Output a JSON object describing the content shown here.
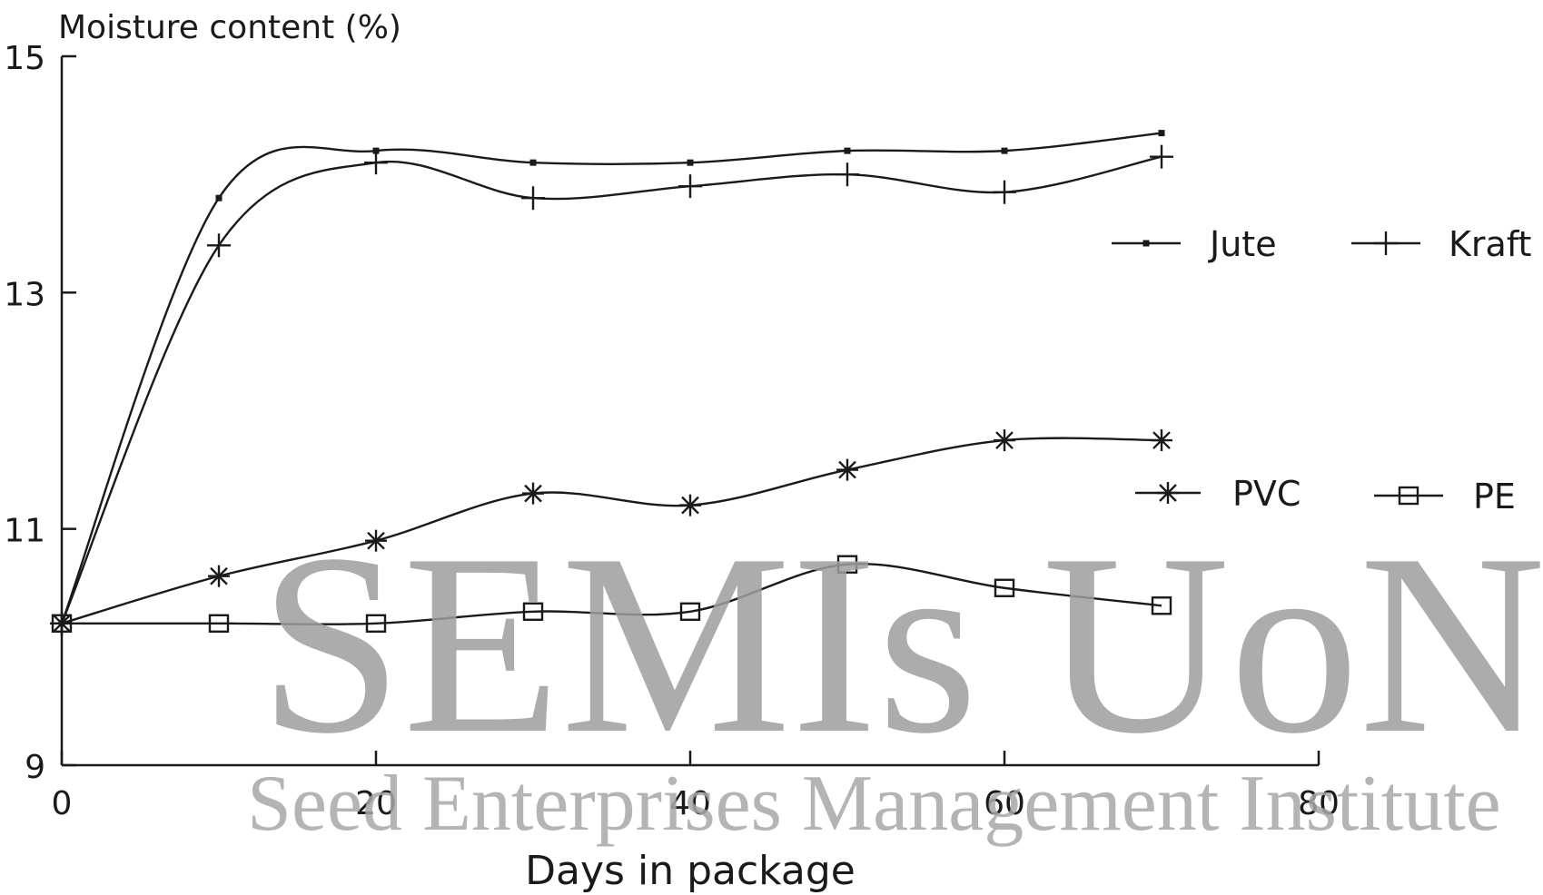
{
  "chart_data": {
    "type": "line",
    "ylabel": "Moisture content (%)",
    "xlabel": "Days in package",
    "xlim": [
      0,
      80
    ],
    "ylim": [
      9,
      15
    ],
    "xticks": [
      0,
      20,
      40,
      60,
      80
    ],
    "yticks": [
      9,
      11,
      13,
      15
    ],
    "grid": false,
    "legend_position": "right",
    "series": [
      {
        "name": "Jute",
        "marker": "dot",
        "x": [
          0,
          10,
          20,
          30,
          40,
          50,
          60,
          70
        ],
        "y": [
          10.2,
          13.8,
          14.2,
          14.1,
          14.1,
          14.2,
          14.2,
          14.35
        ]
      },
      {
        "name": "Kraft",
        "marker": "plus",
        "x": [
          0,
          10,
          20,
          30,
          40,
          50,
          60,
          70
        ],
        "y": [
          10.2,
          13.4,
          14.1,
          13.8,
          13.9,
          14.0,
          13.85,
          14.15
        ]
      },
      {
        "name": "PVC",
        "marker": "asterisk",
        "x": [
          0,
          10,
          20,
          30,
          40,
          50,
          60,
          70
        ],
        "y": [
          10.2,
          10.6,
          10.9,
          11.3,
          11.2,
          11.5,
          11.75,
          11.75
        ]
      },
      {
        "name": "PE",
        "marker": "square",
        "x": [
          0,
          10,
          20,
          30,
          40,
          50,
          60,
          70
        ],
        "y": [
          10.2,
          10.2,
          10.2,
          10.3,
          10.3,
          10.7,
          10.5,
          10.35
        ]
      }
    ],
    "line_color": "#1a1a1a"
  },
  "watermark": {
    "main": "SEMIs UoN",
    "sub": "Seed Enterprises Management Institute",
    "color": "#9e9e9e"
  }
}
